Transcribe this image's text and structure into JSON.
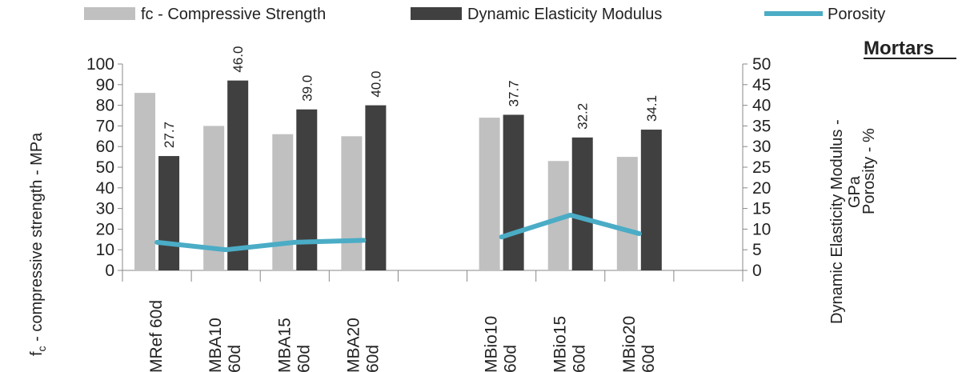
{
  "chart_data": {
    "type": "bar",
    "title": "",
    "panel_label": "Mortars",
    "categories": [
      [
        "MRef 60d"
      ],
      [
        "MBA10",
        "60d"
      ],
      [
        "MBA15",
        "60d"
      ],
      [
        "MBA20",
        "60d"
      ],
      [],
      [
        "MBio10",
        "60d"
      ],
      [
        "MBio15",
        "60d"
      ],
      [
        "MBio20",
        "60d"
      ],
      []
    ],
    "series": [
      {
        "name": "fc - Compressive Strength",
        "axis": "left",
        "kind": "bar",
        "color": "#c0c0c0",
        "values": [
          86,
          70,
          66,
          65,
          null,
          74,
          53,
          55,
          null
        ]
      },
      {
        "name": "Dynamic Elasticity Modulus",
        "axis": "right",
        "kind": "bar",
        "color": "#404040",
        "values": [
          27.7,
          46.0,
          39.0,
          40.0,
          null,
          37.7,
          32.2,
          34.1,
          null
        ],
        "data_labels": [
          "27.7",
          "46.0",
          "39.0",
          "40.0",
          null,
          "37.7",
          "32.2",
          "34.1",
          null
        ]
      },
      {
        "name": "Porosity",
        "axis": "right",
        "kind": "line",
        "color": "#4bacc6",
        "values": [
          6.8,
          5.0,
          6.8,
          7.3,
          null,
          8.1,
          13.4,
          8.9,
          null
        ]
      }
    ],
    "y_left": {
      "label_main": "f",
      "label_sub": "c",
      "label_rest": " - compressive strength  - MPa",
      "min": 0,
      "max": 100,
      "step": 10,
      "ticks": [
        "0",
        "10",
        "20",
        "30",
        "40",
        "50",
        "60",
        "70",
        "80",
        "90",
        "100"
      ]
    },
    "y_right": {
      "label_line1": "Dynamic Elasticity Modulus -",
      "label_line2": "GPa",
      "label_line3": "Porosity - %",
      "min": 0,
      "max": 50,
      "step": 5,
      "ticks": [
        "0",
        "5",
        "10",
        "15",
        "20",
        "25",
        "30",
        "35",
        "40",
        "45",
        "50"
      ]
    },
    "legend_position": "top",
    "grid": false
  }
}
